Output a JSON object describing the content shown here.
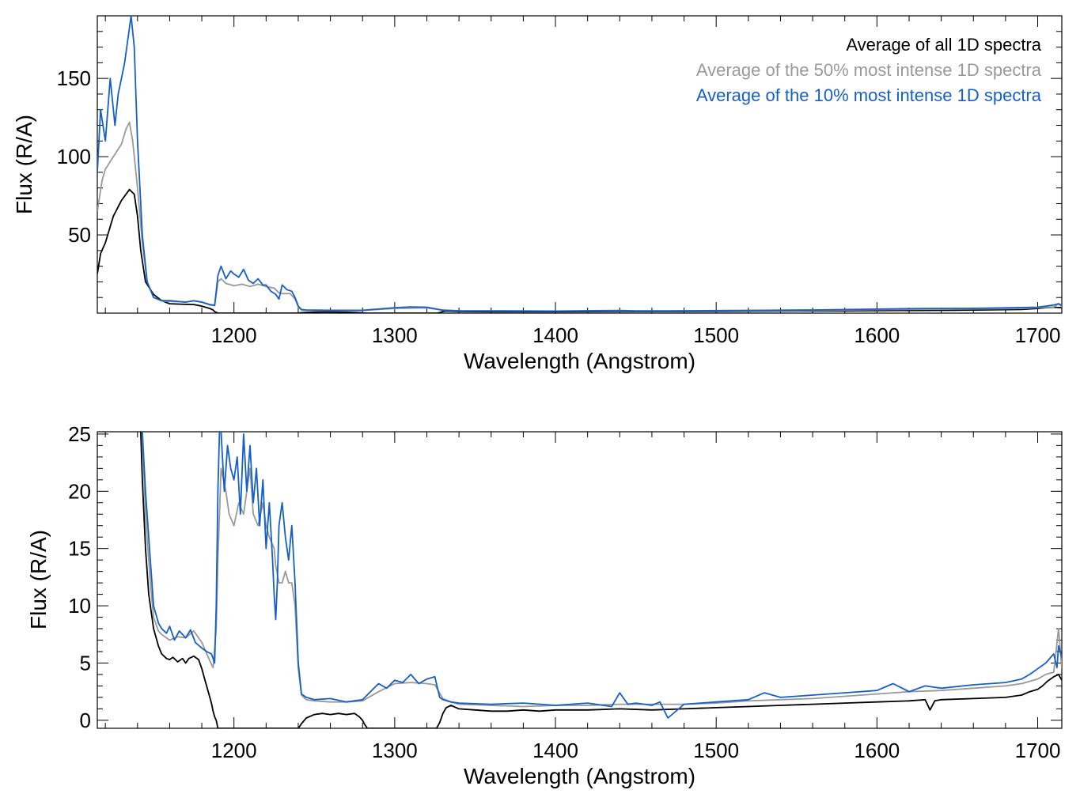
{
  "chart_data": [
    {
      "type": "line",
      "xlabel": "Wavelength (Angstrom)",
      "ylabel": "Flux (R/A)",
      "xlim": [
        1115,
        1715
      ],
      "ylim": [
        0,
        190
      ],
      "xticks": [
        1200,
        1300,
        1400,
        1500,
        1600,
        1700
      ],
      "yticks": [
        50,
        100,
        150
      ],
      "legend_placement": "top-right",
      "legend": [
        {
          "label": "Average of all 1D spectra",
          "color": "#000000"
        },
        {
          "label": "Average of the 50% most intense 1D spectra",
          "color": "#999999"
        },
        {
          "label": "Average of the 10% most intense 1D spectra",
          "color": "#1560c8"
        }
      ],
      "series": [
        {
          "name": "Average of all 1D spectra",
          "color": "#000000",
          "x": [
            1115,
            1117,
            1120,
            1125,
            1130,
            1135,
            1138,
            1140,
            1142,
            1145,
            1150,
            1155,
            1160,
            1170,
            1175,
            1180,
            1185,
            1187,
            1188,
            1189,
            1190,
            1240,
            1242,
            1245,
            1250,
            1260,
            1270,
            1275,
            1280,
            1281,
            1282,
            1283,
            1326,
            1328,
            1330,
            1332,
            1340,
            1360,
            1400,
            1450,
            1500,
            1550,
            1600,
            1650,
            1690,
            1700,
            1705,
            1710,
            1715
          ],
          "y": [
            25,
            38,
            45,
            62,
            72,
            79,
            76,
            62,
            40,
            20,
            12,
            8,
            6,
            5.6,
            5.5,
            4.5,
            3,
            2,
            1,
            0.5,
            0,
            0,
            0.3,
            0.5,
            0.7,
            0.8,
            0.6,
            0.4,
            0.2,
            0.1,
            0,
            0,
            0,
            0.3,
            1,
            1.3,
            1.0,
            0.9,
            0.9,
            1.0,
            1.1,
            1.3,
            1.6,
            1.8,
            2.3,
            3,
            3.5,
            3.8,
            3.5
          ]
        },
        {
          "name": "Average of the 50% most intense 1D spectra",
          "color": "#999999",
          "x": [
            1115,
            1118,
            1120,
            1125,
            1130,
            1133,
            1135,
            1137,
            1140,
            1143,
            1146,
            1150,
            1155,
            1160,
            1170,
            1175,
            1180,
            1185,
            1188,
            1189,
            1190,
            1192,
            1195,
            1200,
            1205,
            1210,
            1215,
            1220,
            1225,
            1228,
            1230,
            1235,
            1238,
            1240,
            1242,
            1245,
            1260,
            1280,
            1300,
            1320,
            1330,
            1340,
            1400,
            1450,
            1500,
            1550,
            1600,
            1650,
            1690,
            1700,
            1710,
            1713,
            1715
          ],
          "y": [
            65,
            85,
            92,
            100,
            108,
            118,
            122,
            110,
            80,
            45,
            20,
            10,
            7.8,
            7.5,
            7.2,
            7.8,
            7,
            5.2,
            4.8,
            12,
            20,
            22,
            19,
            17.5,
            18.5,
            17,
            18.5,
            17,
            16,
            13,
            12.5,
            12.5,
            9,
            4,
            2,
            1.8,
            1.6,
            1.7,
            3,
            3.4,
            1.8,
            1.4,
            1.3,
            1.3,
            1.4,
            1.6,
            2.2,
            2.6,
            3,
            3.5,
            4,
            6,
            4
          ]
        },
        {
          "name": "Average of the 10% most intense 1D spectra",
          "color": "#1560c8",
          "x": [
            1115,
            1117,
            1120,
            1123,
            1126,
            1128,
            1130,
            1132,
            1134,
            1136,
            1138,
            1140,
            1143,
            1146,
            1150,
            1155,
            1160,
            1170,
            1175,
            1180,
            1185,
            1188,
            1189,
            1190,
            1192,
            1195,
            1198,
            1200,
            1203,
            1206,
            1209,
            1212,
            1215,
            1218,
            1220,
            1223,
            1226,
            1228,
            1230,
            1233,
            1236,
            1238,
            1240,
            1242,
            1245,
            1260,
            1280,
            1300,
            1310,
            1320,
            1330,
            1340,
            1400,
            1440,
            1450,
            1470,
            1500,
            1530,
            1560,
            1600,
            1630,
            1660,
            1690,
            1700,
            1705,
            1710,
            1713,
            1715
          ],
          "y": [
            90,
            130,
            110,
            150,
            120,
            140,
            150,
            160,
            175,
            190,
            170,
            110,
            50,
            20,
            10,
            8,
            8,
            7,
            8,
            7,
            5.5,
            5,
            14,
            24,
            30,
            22,
            27,
            25,
            23,
            28,
            21,
            19,
            22,
            18,
            18,
            14,
            12,
            9,
            18,
            15,
            14,
            10,
            4.5,
            2.3,
            2,
            1.8,
            1.8,
            3.5,
            4,
            3.8,
            1.9,
            1.5,
            1.3,
            1.7,
            1.4,
            1.4,
            1.6,
            1.8,
            2.0,
            2.6,
            3.0,
            3.1,
            3.6,
            3.8,
            4.5,
            5.2,
            6,
            5
          ]
        }
      ]
    },
    {
      "type": "line",
      "xlabel": "Wavelength (Angstrom)",
      "ylabel": "Flux (R/A)",
      "xlim": [
        1115,
        1715
      ],
      "ylim": [
        -0.7,
        25.2
      ],
      "xticks": [
        1200,
        1300,
        1400,
        1500,
        1600,
        1700
      ],
      "yticks": [
        0,
        5,
        10,
        15,
        20,
        25
      ],
      "series": [
        {
          "name": "Average of all 1D spectra",
          "color": "#000000",
          "x": [
            1142,
            1143,
            1145,
            1147,
            1150,
            1153,
            1155,
            1158,
            1160,
            1162,
            1165,
            1168,
            1170,
            1172,
            1175,
            1178,
            1180,
            1182,
            1184,
            1186,
            1187,
            1188,
            1189,
            1190,
            1240,
            1242,
            1245,
            1250,
            1255,
            1260,
            1265,
            1270,
            1275,
            1278,
            1280,
            1281,
            1282,
            1283,
            1326,
            1328,
            1330,
            1332,
            1335,
            1340,
            1350,
            1360,
            1370,
            1380,
            1390,
            1400,
            1420,
            1440,
            1460,
            1480,
            1500,
            1520,
            1540,
            1560,
            1580,
            1600,
            1620,
            1630,
            1633,
            1636,
            1640,
            1660,
            1680,
            1690,
            1695,
            1700,
            1703,
            1706,
            1710,
            1713,
            1715
          ],
          "y": [
            25.2,
            21,
            15,
            11,
            8,
            6.5,
            5.8,
            5.4,
            5.3,
            5.5,
            5.1,
            5.4,
            5.0,
            5.4,
            5.6,
            5.3,
            4.5,
            3.5,
            2.5,
            1.5,
            0.8,
            0.3,
            0,
            -0.7,
            -0.7,
            -0.3,
            0.2,
            0.5,
            0.6,
            0.5,
            0.6,
            0.5,
            0.6,
            0.3,
            0,
            -0.3,
            -0.5,
            -0.7,
            -0.7,
            -0.2,
            0.6,
            1.1,
            1.3,
            1.0,
            0.9,
            0.8,
            0.8,
            0.9,
            0.8,
            0.9,
            0.9,
            1.0,
            0.9,
            1.0,
            1.1,
            1.2,
            1.3,
            1.4,
            1.5,
            1.6,
            1.7,
            1.8,
            0.9,
            1.7,
            1.8,
            1.9,
            2.0,
            2.2,
            2.5,
            2.7,
            3.0,
            3.4,
            3.8,
            4.0,
            3.5
          ]
        },
        {
          "name": "Average of the 50% most intense 1D spectra",
          "color": "#999999",
          "x": [
            1143,
            1145,
            1148,
            1150,
            1153,
            1155,
            1158,
            1160,
            1165,
            1170,
            1175,
            1180,
            1185,
            1187,
            1189,
            1190,
            1192,
            1195,
            1197,
            1200,
            1203,
            1206,
            1208,
            1210,
            1212,
            1215,
            1218,
            1220,
            1222,
            1225,
            1226,
            1228,
            1230,
            1232,
            1234,
            1236,
            1238,
            1240,
            1242,
            1245,
            1250,
            1260,
            1270,
            1280,
            1290,
            1300,
            1310,
            1320,
            1325,
            1330,
            1335,
            1340,
            1360,
            1380,
            1400,
            1420,
            1440,
            1460,
            1480,
            1500,
            1520,
            1540,
            1560,
            1580,
            1600,
            1620,
            1640,
            1660,
            1680,
            1690,
            1700,
            1705,
            1710,
            1713,
            1715
          ],
          "y": [
            25.2,
            18,
            12,
            9,
            7.8,
            7.5,
            7.2,
            7.0,
            7.3,
            7.2,
            7.8,
            6.8,
            5.2,
            4.6,
            8,
            14,
            22,
            20,
            18,
            17,
            19,
            18,
            20,
            22,
            18,
            17,
            19,
            17,
            16,
            15,
            13.5,
            12,
            12,
            13,
            12,
            12,
            10,
            4.5,
            2.2,
            1.8,
            1.7,
            1.6,
            1.6,
            1.7,
            2.5,
            3.2,
            3.3,
            3.2,
            3.1,
            1.9,
            1.6,
            1.4,
            1.3,
            1.2,
            1.3,
            1.3,
            1.4,
            1.4,
            1.4,
            1.5,
            1.7,
            1.8,
            1.9,
            2.1,
            2.3,
            2.5,
            2.6,
            2.8,
            3.0,
            3.2,
            3.6,
            4.0,
            4.2,
            8,
            4.5
          ]
        },
        {
          "name": "Average of the 10% most intense 1D spectra",
          "color": "#1560c8",
          "x": [
            1143,
            1145,
            1148,
            1150,
            1153,
            1155,
            1158,
            1160,
            1163,
            1166,
            1170,
            1173,
            1176,
            1180,
            1183,
            1186,
            1188,
            1189,
            1190,
            1191,
            1192,
            1194,
            1196,
            1198,
            1200,
            1202,
            1204,
            1206,
            1208,
            1210,
            1212,
            1214,
            1216,
            1218,
            1220,
            1222,
            1224,
            1225,
            1226,
            1227,
            1228,
            1230,
            1232,
            1234,
            1236,
            1238,
            1240,
            1242,
            1245,
            1250,
            1260,
            1270,
            1280,
            1290,
            1295,
            1300,
            1305,
            1310,
            1315,
            1320,
            1325,
            1328,
            1330,
            1335,
            1340,
            1360,
            1380,
            1400,
            1420,
            1435,
            1440,
            1445,
            1450,
            1460,
            1465,
            1470,
            1480,
            1500,
            1520,
            1530,
            1540,
            1560,
            1580,
            1600,
            1610,
            1620,
            1630,
            1640,
            1660,
            1680,
            1690,
            1695,
            1700,
            1705,
            1710,
            1712,
            1713,
            1715
          ],
          "y": [
            25.2,
            20,
            14,
            10,
            8.5,
            8,
            7.6,
            8.2,
            7.0,
            7.8,
            7.2,
            7.9,
            6.8,
            6.3,
            6.0,
            5.8,
            5.0,
            10,
            20,
            25.2,
            25.2,
            20,
            24,
            22,
            21,
            23,
            18,
            25,
            20,
            24,
            19,
            22,
            17,
            21,
            15,
            19,
            14,
            11,
            8.8,
            12,
            17,
            19,
            16,
            14,
            17,
            12,
            5,
            2.3,
            2,
            1.8,
            1.9,
            1.6,
            1.8,
            3.2,
            2.8,
            3.5,
            3.3,
            4.0,
            3.2,
            3.6,
            3.8,
            2.0,
            1.8,
            1.6,
            1.5,
            1.4,
            1.5,
            1.3,
            1.5,
            1.2,
            2.4,
            1.4,
            1.5,
            1.3,
            1.6,
            0.2,
            1.4,
            1.6,
            1.8,
            2.4,
            2.0,
            2.2,
            2.4,
            2.6,
            3.2,
            2.5,
            3.0,
            2.8,
            3.1,
            3.3,
            3.6,
            4.0,
            4.5,
            5.0,
            5.8,
            4.6,
            6.5,
            5.5
          ]
        }
      ]
    }
  ]
}
